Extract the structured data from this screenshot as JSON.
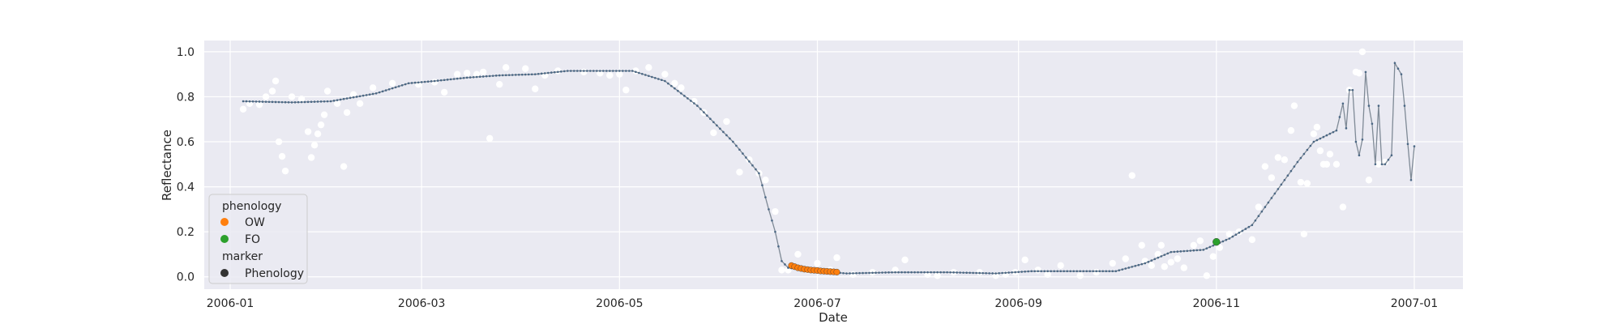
{
  "chart_data": {
    "type": "scatter",
    "title": "",
    "xlabel": "Date",
    "ylabel": "Reflectance",
    "x_ticks": [
      "2006-01",
      "2006-03",
      "2006-05",
      "2006-07",
      "2006-09",
      "2006-11",
      "2007-01"
    ],
    "x_tick_dates": [
      "2006-01-01",
      "2006-03-01",
      "2006-05-01",
      "2006-07-01",
      "2006-09-01",
      "2006-11-01",
      "2007-01-01"
    ],
    "xlim": [
      "2005-12-24",
      "2007-01-16"
    ],
    "y_ticks": [
      "0.0",
      "0.2",
      "0.4",
      "0.6",
      "0.8",
      "1.0"
    ],
    "ylim": [
      -0.055,
      1.05
    ],
    "grid": true,
    "legend": {
      "placement": "lower-left",
      "title1": "phenology",
      "entries": [
        {
          "label": "OW",
          "color": "#ff7f0e"
        },
        {
          "label": "FO",
          "color": "#2ca02c"
        }
      ],
      "title2": "marker",
      "marker_entries": [
        {
          "label": "Phenology",
          "color": "#333333"
        }
      ]
    },
    "series": [
      {
        "role": "observations",
        "color": "#ffffff",
        "points": [
          [
            "2006-01-05",
            0.745
          ],
          [
            "2006-01-07",
            0.77
          ],
          [
            "2006-01-10",
            0.765
          ],
          [
            "2006-01-12",
            0.8
          ],
          [
            "2006-01-14",
            0.825
          ],
          [
            "2006-01-15",
            0.87
          ],
          [
            "2006-01-16",
            0.6
          ],
          [
            "2006-01-17",
            0.535
          ],
          [
            "2006-01-18",
            0.47
          ],
          [
            "2006-01-20",
            0.8
          ],
          [
            "2006-01-23",
            0.79
          ],
          [
            "2006-01-25",
            0.645
          ],
          [
            "2006-01-26",
            0.53
          ],
          [
            "2006-01-27",
            0.585
          ],
          [
            "2006-01-28",
            0.635
          ],
          [
            "2006-01-29",
            0.675
          ],
          [
            "2006-01-30",
            0.72
          ],
          [
            "2006-01-31",
            0.825
          ],
          [
            "2006-02-03",
            0.77
          ],
          [
            "2006-02-05",
            0.49
          ],
          [
            "2006-02-06",
            0.73
          ],
          [
            "2006-02-08",
            0.81
          ],
          [
            "2006-02-10",
            0.77
          ],
          [
            "2006-02-14",
            0.84
          ],
          [
            "2006-02-20",
            0.86
          ],
          [
            "2006-02-28",
            0.855
          ],
          [
            "2006-03-05",
            0.865
          ],
          [
            "2006-03-08",
            0.82
          ],
          [
            "2006-03-12",
            0.9
          ],
          [
            "2006-03-15",
            0.905
          ],
          [
            "2006-03-18",
            0.9
          ],
          [
            "2006-03-20",
            0.91
          ],
          [
            "2006-03-22",
            0.615
          ],
          [
            "2006-03-25",
            0.855
          ],
          [
            "2006-03-27",
            0.93
          ],
          [
            "2006-04-02",
            0.925
          ],
          [
            "2006-04-05",
            0.835
          ],
          [
            "2006-04-08",
            0.895
          ],
          [
            "2006-04-12",
            0.915
          ],
          [
            "2006-04-20",
            0.91
          ],
          [
            "2006-04-25",
            0.905
          ],
          [
            "2006-04-28",
            0.895
          ],
          [
            "2006-05-01",
            0.9
          ],
          [
            "2006-05-03",
            0.83
          ],
          [
            "2006-05-06",
            0.915
          ],
          [
            "2006-05-10",
            0.93
          ],
          [
            "2006-05-15",
            0.9
          ],
          [
            "2006-05-18",
            0.86
          ],
          [
            "2006-05-20",
            0.84
          ],
          [
            "2006-05-24",
            0.78
          ],
          [
            "2006-05-27",
            0.73
          ],
          [
            "2006-05-30",
            0.64
          ],
          [
            "2006-06-03",
            0.69
          ],
          [
            "2006-06-07",
            0.465
          ],
          [
            "2006-06-10",
            0.52
          ],
          [
            "2006-06-13",
            0.46
          ],
          [
            "2006-06-15",
            0.43
          ],
          [
            "2006-06-18",
            0.29
          ],
          [
            "2006-06-20",
            0.03
          ],
          [
            "2006-06-22",
            0.03
          ],
          [
            "2006-06-25",
            0.1
          ],
          [
            "2006-06-28",
            0.03
          ],
          [
            "2006-07-01",
            0.06
          ],
          [
            "2006-07-05",
            0.03
          ],
          [
            "2006-07-07",
            0.085
          ],
          [
            "2006-07-12",
            0.01
          ],
          [
            "2006-07-18",
            0.02
          ],
          [
            "2006-07-25",
            0.03
          ],
          [
            "2006-07-28",
            0.075
          ],
          [
            "2006-08-04",
            0.01
          ],
          [
            "2006-08-07",
            0.005
          ],
          [
            "2006-08-12",
            0.02
          ],
          [
            "2006-08-20",
            0.02
          ],
          [
            "2006-08-25",
            0.005
          ],
          [
            "2006-08-28",
            0.01
          ],
          [
            "2006-08-31",
            0.02
          ],
          [
            "2006-09-03",
            0.075
          ],
          [
            "2006-09-07",
            0.03
          ],
          [
            "2006-09-10",
            0.01
          ],
          [
            "2006-09-14",
            0.05
          ],
          [
            "2006-09-20",
            0.005
          ],
          [
            "2006-09-25",
            0.02
          ],
          [
            "2006-09-30",
            0.06
          ],
          [
            "2006-10-04",
            0.08
          ],
          [
            "2006-10-06",
            0.45
          ],
          [
            "2006-10-09",
            0.14
          ],
          [
            "2006-10-10",
            0.07
          ],
          [
            "2006-10-12",
            0.05
          ],
          [
            "2006-10-14",
            0.1
          ],
          [
            "2006-10-15",
            0.14
          ],
          [
            "2006-10-16",
            0.045
          ],
          [
            "2006-10-18",
            0.065
          ],
          [
            "2006-10-20",
            0.08
          ],
          [
            "2006-10-22",
            0.04
          ],
          [
            "2006-10-25",
            0.14
          ],
          [
            "2006-10-27",
            0.16
          ],
          [
            "2006-10-29",
            0.005
          ],
          [
            "2006-10-31",
            0.09
          ],
          [
            "2006-11-02",
            0.13
          ],
          [
            "2006-11-05",
            0.19
          ],
          [
            "2006-11-08",
            0.2
          ],
          [
            "2006-11-12",
            0.165
          ],
          [
            "2006-11-14",
            0.31
          ],
          [
            "2006-11-16",
            0.49
          ],
          [
            "2006-11-18",
            0.44
          ],
          [
            "2006-11-20",
            0.53
          ],
          [
            "2006-11-22",
            0.52
          ],
          [
            "2006-11-24",
            0.65
          ],
          [
            "2006-11-25",
            0.76
          ],
          [
            "2006-11-27",
            0.42
          ],
          [
            "2006-11-28",
            0.19
          ],
          [
            "2006-11-29",
            0.415
          ],
          [
            "2006-12-01",
            0.635
          ],
          [
            "2006-12-02",
            0.665
          ],
          [
            "2006-12-03",
            0.56
          ],
          [
            "2006-12-04",
            0.5
          ],
          [
            "2006-12-05",
            0.5
          ],
          [
            "2006-12-06",
            0.545
          ],
          [
            "2006-12-08",
            0.5
          ],
          [
            "2006-12-10",
            0.31
          ],
          [
            "2006-12-12",
            0.83
          ],
          [
            "2006-12-14",
            0.91
          ],
          [
            "2006-12-15",
            0.905
          ],
          [
            "2006-12-16",
            1.0
          ],
          [
            "2006-12-18",
            0.43
          ],
          [
            "2006-12-21",
            0.5
          ],
          [
            "2006-12-23",
            0.51
          ]
        ]
      },
      {
        "role": "fitted-curve",
        "color": "#4a6784",
        "points": [
          [
            "2006-01-05",
            0.78
          ],
          [
            "2006-01-20",
            0.775
          ],
          [
            "2006-02-01",
            0.78
          ],
          [
            "2006-02-15",
            0.815
          ],
          [
            "2006-02-25",
            0.86
          ],
          [
            "2006-03-05",
            0.87
          ],
          [
            "2006-03-15",
            0.885
          ],
          [
            "2006-03-25",
            0.895
          ],
          [
            "2006-04-05",
            0.9
          ],
          [
            "2006-04-15",
            0.915
          ],
          [
            "2006-04-25",
            0.915
          ],
          [
            "2006-05-05",
            0.915
          ],
          [
            "2006-05-15",
            0.87
          ],
          [
            "2006-05-25",
            0.76
          ],
          [
            "2006-06-05",
            0.6
          ],
          [
            "2006-06-13",
            0.46
          ],
          [
            "2006-06-16",
            0.3
          ],
          [
            "2006-06-18",
            0.2
          ],
          [
            "2006-06-20",
            0.07
          ],
          [
            "2006-06-22",
            0.04
          ],
          [
            "2006-07-01",
            0.025
          ],
          [
            "2006-07-10",
            0.015
          ],
          [
            "2006-07-25",
            0.02
          ],
          [
            "2006-08-10",
            0.02
          ],
          [
            "2006-08-25",
            0.015
          ],
          [
            "2006-09-05",
            0.025
          ],
          [
            "2006-09-20",
            0.025
          ],
          [
            "2006-10-01",
            0.025
          ],
          [
            "2006-10-10",
            0.06
          ],
          [
            "2006-10-18",
            0.11
          ],
          [
            "2006-10-28",
            0.12
          ],
          [
            "2006-11-05",
            0.17
          ],
          [
            "2006-11-12",
            0.23
          ],
          [
            "2006-11-20",
            0.39
          ],
          [
            "2006-11-26",
            0.51
          ],
          [
            "2006-12-01",
            0.6
          ],
          [
            "2006-12-08",
            0.65
          ],
          [
            "2006-12-10",
            0.77
          ],
          [
            "2006-12-11",
            0.66
          ],
          [
            "2006-12-12",
            0.83
          ],
          [
            "2006-12-13",
            0.83
          ],
          [
            "2006-12-14",
            0.6
          ],
          [
            "2006-12-15",
            0.54
          ],
          [
            "2006-12-16",
            0.61
          ],
          [
            "2006-12-17",
            0.91
          ],
          [
            "2006-12-18",
            0.76
          ],
          [
            "2006-12-19",
            0.68
          ],
          [
            "2006-12-20",
            0.5
          ],
          [
            "2006-12-21",
            0.76
          ],
          [
            "2006-12-22",
            0.5
          ],
          [
            "2006-12-23",
            0.5
          ],
          [
            "2006-12-25",
            0.54
          ],
          [
            "2006-12-26",
            0.95
          ],
          [
            "2006-12-28",
            0.9
          ],
          [
            "2006-12-29",
            0.76
          ],
          [
            "2006-12-30",
            0.59
          ],
          [
            "2006-12-31",
            0.43
          ],
          [
            "2007-01-01",
            0.58
          ]
        ]
      },
      {
        "role": "phenology-OW",
        "color": "#ff7f0e",
        "points": [
          [
            "2006-06-23",
            0.05
          ],
          [
            "2006-06-24",
            0.045
          ],
          [
            "2006-06-25",
            0.04
          ],
          [
            "2006-06-26",
            0.037
          ],
          [
            "2006-06-27",
            0.034
          ],
          [
            "2006-06-28",
            0.032
          ],
          [
            "2006-06-29",
            0.03
          ],
          [
            "2006-06-30",
            0.029
          ],
          [
            "2006-07-01",
            0.028
          ],
          [
            "2006-07-02",
            0.026
          ],
          [
            "2006-07-03",
            0.025
          ],
          [
            "2006-07-04",
            0.024
          ],
          [
            "2006-07-05",
            0.023
          ],
          [
            "2006-07-06",
            0.022
          ],
          [
            "2006-07-07",
            0.021
          ]
        ]
      },
      {
        "role": "phenology-FO",
        "color": "#2ca02c",
        "points": [
          [
            "2006-11-01",
            0.155
          ]
        ]
      }
    ]
  }
}
